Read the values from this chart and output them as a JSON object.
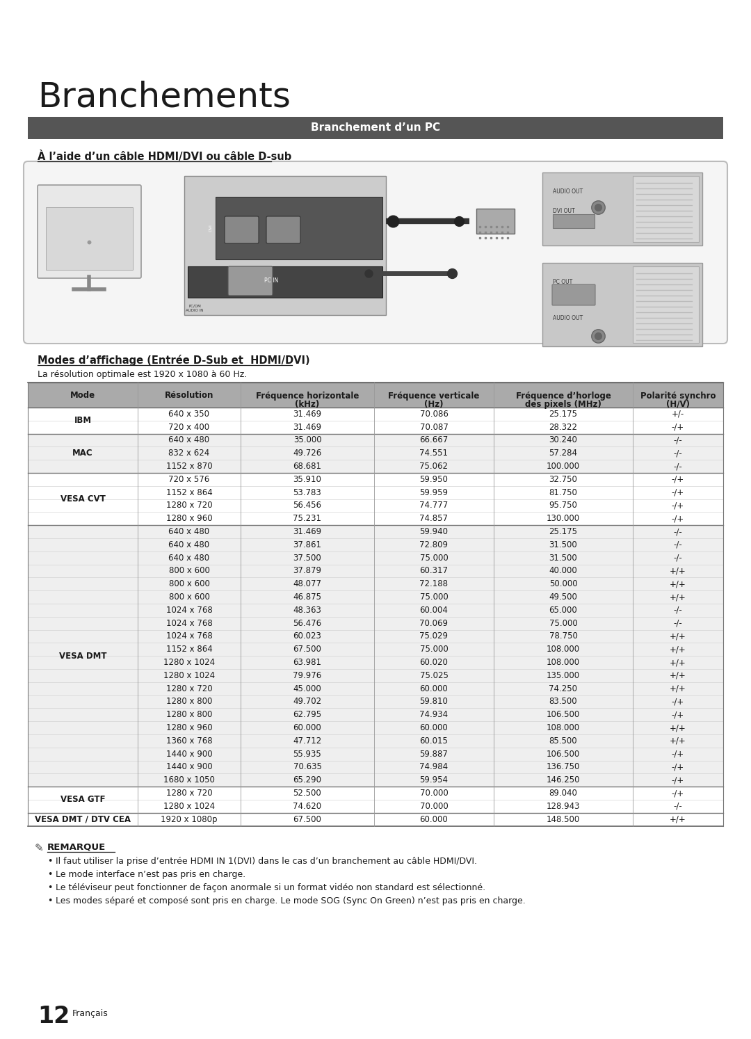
{
  "title": "Branchements",
  "section_bar_text": "Branchement d’un PC",
  "section_bar_color": "#555555",
  "subsection_title": "À l’aide d’un câble HDMI/DVI ou câble D-sub",
  "table_section_title": "Modes d’affichage (Entrée D-Sub et  HDMI/DVI)",
  "table_subtitle": "La résolution optimale est 1920 x 1080 à 60 Hz.",
  "col_headers": [
    "Mode",
    "Résolution",
    "Fréquence horizontale\n(kHz)",
    "Fréquence verticale\n(Hz)",
    "Fréquence d’horloge\ndes pixels (MHz)",
    "Polarité synchro\n(H/V)"
  ],
  "header_bg": "#aaaaaa",
  "rows": [
    [
      "IBM",
      "640 x 350",
      "31.469",
      "70.086",
      "25.175",
      "+/-"
    ],
    [
      "IBM",
      "720 x 400",
      "31.469",
      "70.087",
      "28.322",
      "-/+"
    ],
    [
      "MAC",
      "640 x 480",
      "35.000",
      "66.667",
      "30.240",
      "-/-"
    ],
    [
      "MAC",
      "832 x 624",
      "49.726",
      "74.551",
      "57.284",
      "-/-"
    ],
    [
      "MAC",
      "1152 x 870",
      "68.681",
      "75.062",
      "100.000",
      "-/-"
    ],
    [
      "VESA CVT",
      "720 x 576",
      "35.910",
      "59.950",
      "32.750",
      "-/+"
    ],
    [
      "VESA CVT",
      "1152 x 864",
      "53.783",
      "59.959",
      "81.750",
      "-/+"
    ],
    [
      "VESA CVT",
      "1280 x 720",
      "56.456",
      "74.777",
      "95.750",
      "-/+"
    ],
    [
      "VESA CVT",
      "1280 x 960",
      "75.231",
      "74.857",
      "130.000",
      "-/+"
    ],
    [
      "VESA DMT",
      "640 x 480",
      "31.469",
      "59.940",
      "25.175",
      "-/-"
    ],
    [
      "VESA DMT",
      "640 x 480",
      "37.861",
      "72.809",
      "31.500",
      "-/-"
    ],
    [
      "VESA DMT",
      "640 x 480",
      "37.500",
      "75.000",
      "31.500",
      "-/-"
    ],
    [
      "VESA DMT",
      "800 x 600",
      "37.879",
      "60.317",
      "40.000",
      "+/+"
    ],
    [
      "VESA DMT",
      "800 x 600",
      "48.077",
      "72.188",
      "50.000",
      "+/+"
    ],
    [
      "VESA DMT",
      "800 x 600",
      "46.875",
      "75.000",
      "49.500",
      "+/+"
    ],
    [
      "VESA DMT",
      "1024 x 768",
      "48.363",
      "60.004",
      "65.000",
      "-/-"
    ],
    [
      "VESA DMT",
      "1024 x 768",
      "56.476",
      "70.069",
      "75.000",
      "-/-"
    ],
    [
      "VESA DMT",
      "1024 x 768",
      "60.023",
      "75.029",
      "78.750",
      "+/+"
    ],
    [
      "VESA DMT",
      "1152 x 864",
      "67.500",
      "75.000",
      "108.000",
      "+/+"
    ],
    [
      "VESA DMT",
      "1280 x 1024",
      "63.981",
      "60.020",
      "108.000",
      "+/+"
    ],
    [
      "VESA DMT",
      "1280 x 1024",
      "79.976",
      "75.025",
      "135.000",
      "+/+"
    ],
    [
      "VESA DMT",
      "1280 x 720",
      "45.000",
      "60.000",
      "74.250",
      "+/+"
    ],
    [
      "VESA DMT",
      "1280 x 800",
      "49.702",
      "59.810",
      "83.500",
      "-/+"
    ],
    [
      "VESA DMT",
      "1280 x 800",
      "62.795",
      "74.934",
      "106.500",
      "-/+"
    ],
    [
      "VESA DMT",
      "1280 x 960",
      "60.000",
      "60.000",
      "108.000",
      "+/+"
    ],
    [
      "VESA DMT",
      "1360 x 768",
      "47.712",
      "60.015",
      "85.500",
      "+/+"
    ],
    [
      "VESA DMT",
      "1440 x 900",
      "55.935",
      "59.887",
      "106.500",
      "-/+"
    ],
    [
      "VESA DMT",
      "1440 x 900",
      "70.635",
      "74.984",
      "136.750",
      "-/+"
    ],
    [
      "VESA DMT",
      "1680 x 1050",
      "65.290",
      "59.954",
      "146.250",
      "-/+"
    ],
    [
      "VESA GTF",
      "1280 x 720",
      "52.500",
      "70.000",
      "89.040",
      "-/+"
    ],
    [
      "VESA GTF",
      "1280 x 1024",
      "74.620",
      "70.000",
      "128.943",
      "-/-"
    ],
    [
      "VESA DMT / DTV CEA",
      "1920 x 1080p",
      "67.500",
      "60.000",
      "148.500",
      "+/+"
    ]
  ],
  "mode_groups": {
    "IBM": [
      0,
      1
    ],
    "MAC": [
      2,
      3,
      4
    ],
    "VESA CVT": [
      5,
      6,
      7,
      8
    ],
    "VESA DMT": [
      9,
      10,
      11,
      12,
      13,
      14,
      15,
      16,
      17,
      18,
      19,
      20,
      21,
      22,
      23,
      24,
      25,
      26,
      27,
      28
    ],
    "VESA GTF": [
      29,
      30
    ],
    "VESA DMT / DTV CEA": [
      31
    ]
  },
  "remarks_title": "REMARQUE",
  "remarks": [
    "Il faut utiliser la prise d’entrée HDMI IN 1(DVI) dans le cas d’un branchement au câble HDMI/DVI.",
    "Le mode interface n’est pas pris en charge.",
    "Le téléviseur peut fonctionner de façon anormale si un format vidéo non standard est sélectionné.",
    "Les modes séparé et composé sont pris en charge. Le mode SOG (Sync On Green) n’est pas pris en charge."
  ],
  "page_number": "12",
  "page_lang": "Français",
  "bg_color": "#ffffff",
  "text_color": "#1a1a1a",
  "border_color": "#999999"
}
